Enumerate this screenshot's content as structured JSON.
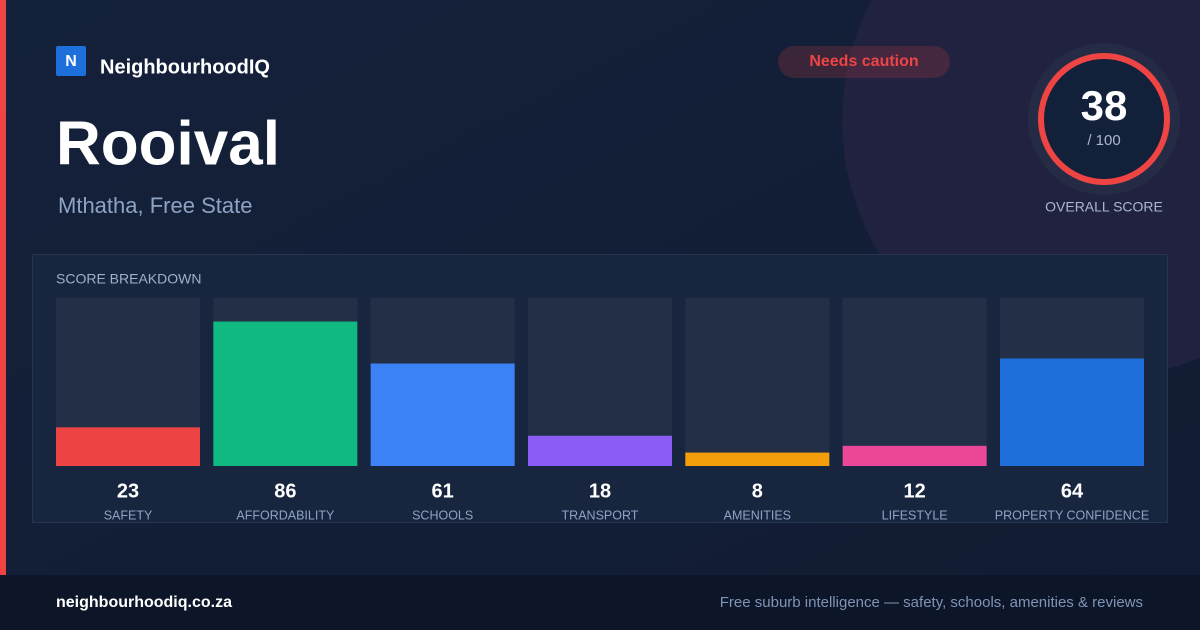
{
  "brand": {
    "logo": "N",
    "name": "NeighbourhoodIQ"
  },
  "badge": "Needs caution",
  "suburb": "Rooival",
  "location": "Mthatha, Free State",
  "overall": {
    "score": 38,
    "max_label": "/ 100",
    "label": "OVERALL SCORE"
  },
  "chart_data": {
    "type": "bar",
    "title": "SCORE BREAKDOWN",
    "categories": [
      "SAFETY",
      "AFFORDABILITY",
      "SCHOOLS",
      "TRANSPORT",
      "AMENITIES",
      "LIFESTYLE",
      "PROPERTY CONFIDENCE"
    ],
    "values": [
      23,
      86,
      61,
      18,
      8,
      12,
      64
    ],
    "colors": [
      "#ef4444",
      "#10b981",
      "#3b82f6",
      "#8b5cf6",
      "#f59e0b",
      "#ec4899",
      "#1d6fdb"
    ],
    "ylim": [
      0,
      100
    ]
  },
  "footer": {
    "site": "neighbourhoodiq.co.za",
    "tagline": "Free suburb intelligence — safety, schools, amenities & reviews"
  }
}
